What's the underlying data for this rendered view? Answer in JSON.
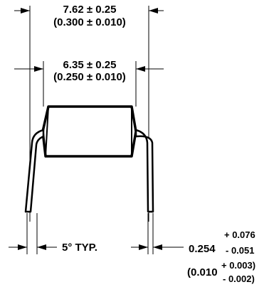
{
  "overall_width": {
    "mm": "7.62 ± 0.25",
    "inch": "(0.300 ± 0.010)"
  },
  "body_width": {
    "mm": "6.35 ± 0.25",
    "inch": "(0.250 ± 0.010)"
  },
  "lead_angle": "5° TYP.",
  "lead_thickness": {
    "mm_value": "0.254",
    "mm_plus": "+ 0.076",
    "mm_minus": "- 0.051",
    "inch_open": "(0.010",
    "inch_plus": "+ 0.003)",
    "inch_minus": "- 0.002)"
  }
}
